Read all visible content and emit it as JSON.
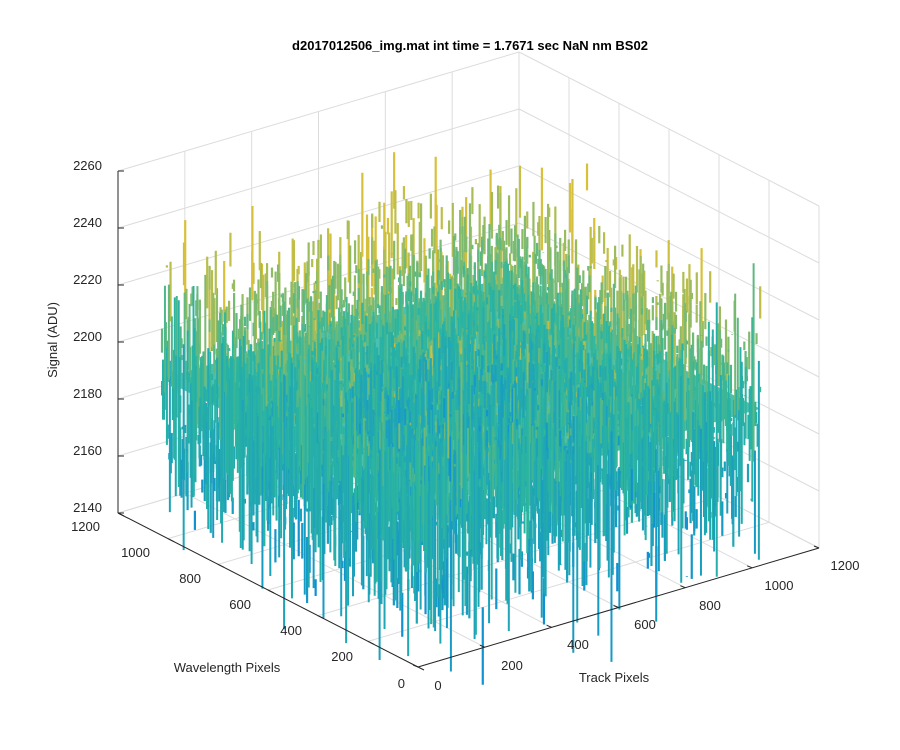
{
  "chart_data": {
    "type": "surface",
    "title": "d2017012506_img.mat int time = 1.7671 sec  NaN nm BS02",
    "xlabel": "Track Pixels",
    "ylabel": "Wavelength Pixels",
    "zlabel": "Signal (ADU)",
    "xlim": [
      0,
      1200
    ],
    "ylim": [
      0,
      1200
    ],
    "zlim": [
      2140,
      2260
    ],
    "xticks": [
      "0",
      "200",
      "400",
      "600",
      "800",
      "1000",
      "1200"
    ],
    "yticks": [
      "0",
      "200",
      "400",
      "600",
      "800",
      "1000",
      "1200"
    ],
    "zticks": [
      "2140",
      "2160",
      "2180",
      "2200",
      "2220",
      "2240",
      "2260"
    ],
    "grid": true,
    "colormap": "parula",
    "surface": {
      "x_extent": [
        0,
        1024
      ],
      "y_extent": [
        0,
        1024
      ],
      "mean_signal": 2195,
      "noise_amplitude": 18,
      "min_signal": 2150,
      "max_signal": 2245
    },
    "colors": {
      "low": "#0f8fd4",
      "mid": "#2bb5a0",
      "high": "#d9c03a"
    }
  }
}
